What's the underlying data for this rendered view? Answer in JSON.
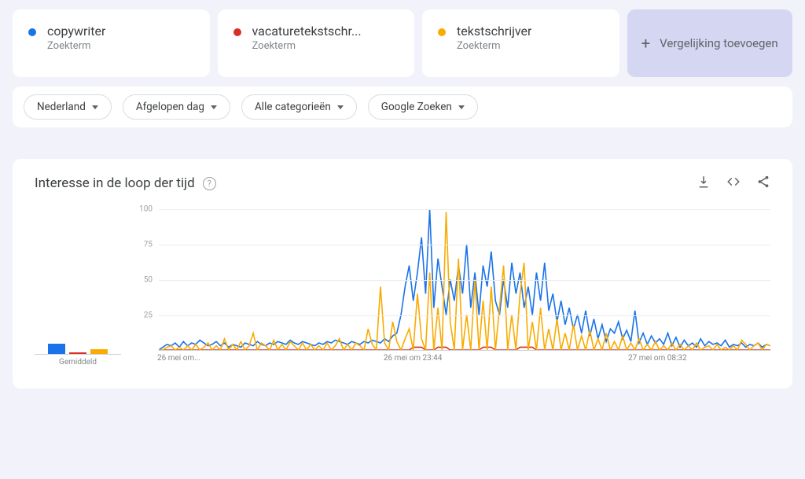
{
  "colors": {
    "blue": "#1a73e8",
    "red": "#d93025",
    "yellow": "#f9ab00",
    "page_bg": "#f1f2fa",
    "card_bg": "#ffffff",
    "add_card_bg": "#d5d7f2",
    "grid": "#ececec",
    "axis": "#cfd2d6",
    "text_main": "#3c4043",
    "text_muted": "#80868b",
    "pill_border": "#dadce0"
  },
  "terms": [
    {
      "title": "copywriter",
      "sub": "Zoekterm",
      "color": "#1a73e8"
    },
    {
      "title": "vacaturetekstschr...",
      "sub": "Zoekterm",
      "color": "#d93025"
    },
    {
      "title": "tekstschrijver",
      "sub": "Zoekterm",
      "color": "#f9ab00"
    }
  ],
  "add_compare_label": "Vergelijking toevoegen",
  "filters": [
    {
      "label": "Nederland"
    },
    {
      "label": "Afgelopen dag"
    },
    {
      "label": "Alle categorieën"
    },
    {
      "label": "Google Zoeken"
    }
  ],
  "chart": {
    "title": "Interesse in de loop der tijd",
    "type": "line",
    "ylim": [
      0,
      100
    ],
    "yticks": [
      25,
      50,
      75,
      100
    ],
    "line_width": 1.6,
    "n_points": 150,
    "x_ticks": [
      {
        "pos": 0.0,
        "label": "26 mei om..."
      },
      {
        "pos": 0.37,
        "label": "26 mei om 23:44"
      },
      {
        "pos": 0.77,
        "label": "27 mei om 08:32"
      }
    ],
    "averages_label": "Gemiddeld",
    "averages": [
      {
        "color": "#1a73e8",
        "value": 13
      },
      {
        "color": "#d93025",
        "value": 1
      },
      {
        "color": "#f9ab00",
        "value": 6
      }
    ],
    "series": [
      {
        "name": "copywriter",
        "color": "#1a73e8",
        "values": [
          0,
          2,
          4,
          3,
          5,
          2,
          6,
          3,
          5,
          4,
          7,
          5,
          3,
          4,
          6,
          3,
          5,
          2,
          4,
          3,
          2,
          5,
          4,
          3,
          6,
          4,
          3,
          5,
          4,
          6,
          5,
          4,
          7,
          5,
          4,
          6,
          5,
          4,
          3,
          5,
          4,
          6,
          5,
          7,
          6,
          5,
          4,
          6,
          5,
          4,
          6,
          5,
          7,
          6,
          5,
          8,
          6,
          10,
          12,
          25,
          45,
          60,
          35,
          55,
          80,
          40,
          100,
          30,
          65,
          45,
          25,
          50,
          35,
          60,
          40,
          75,
          30,
          55,
          25,
          60,
          45,
          70,
          35,
          25,
          50,
          30,
          62,
          40,
          55,
          30,
          45,
          25,
          55,
          35,
          62,
          28,
          40,
          20,
          35,
          18,
          30,
          15,
          25,
          12,
          28,
          10,
          22,
          8,
          18,
          6,
          15,
          12,
          20,
          8,
          14,
          6,
          28,
          5,
          12,
          4,
          10,
          5,
          8,
          4,
          12,
          3,
          9,
          2,
          7,
          3,
          5,
          2,
          8,
          3,
          6,
          4,
          5,
          3,
          7,
          2,
          4,
          3,
          5,
          2,
          4,
          3,
          5,
          2,
          4,
          3
        ]
      },
      {
        "name": "vacaturetekstschrijver",
        "color": "#d93025",
        "values": [
          0,
          0,
          0,
          0,
          0,
          0,
          0,
          0,
          0,
          0,
          0,
          0,
          0,
          0,
          0,
          0,
          0,
          0,
          0,
          0,
          0,
          0,
          0,
          0,
          0,
          0,
          0,
          0,
          0,
          0,
          0,
          0,
          0,
          0,
          0,
          0,
          0,
          0,
          0,
          0,
          0,
          0,
          0,
          0,
          0,
          0,
          0,
          0,
          0,
          0,
          0,
          0,
          0,
          0,
          0,
          0,
          0,
          0,
          0,
          0,
          0,
          0,
          2,
          2,
          2,
          0,
          0,
          0,
          2,
          2,
          2,
          0,
          0,
          0,
          0,
          0,
          0,
          0,
          0,
          2,
          2,
          2,
          0,
          0,
          0,
          0,
          0,
          0,
          2,
          2,
          2,
          2,
          0,
          0,
          0,
          0,
          0,
          0,
          0,
          0,
          0,
          0,
          0,
          0,
          0,
          0,
          0,
          0,
          0,
          0,
          0,
          0,
          0,
          0,
          0,
          0,
          0,
          0,
          0,
          0,
          0,
          0,
          0,
          0,
          0,
          0,
          0,
          0,
          0,
          0,
          0,
          0,
          0,
          0,
          0,
          0,
          0,
          0,
          0,
          0,
          0,
          0,
          0,
          0,
          0,
          0,
          0,
          0,
          0,
          0
        ]
      },
      {
        "name": "tekstschrijver",
        "color": "#f9ab00",
        "values": [
          0,
          0,
          2,
          3,
          0,
          2,
          0,
          3,
          0,
          4,
          0,
          2,
          5,
          0,
          3,
          0,
          8,
          0,
          4,
          0,
          6,
          0,
          3,
          12,
          0,
          5,
          3,
          0,
          7,
          0,
          4,
          0,
          6,
          3,
          0,
          5,
          0,
          4,
          0,
          3,
          0,
          5,
          0,
          3,
          8,
          0,
          4,
          0,
          5,
          3,
          0,
          15,
          4,
          0,
          45,
          5,
          0,
          20,
          6,
          0,
          8,
          15,
          0,
          40,
          8,
          0,
          55,
          0,
          30,
          0,
          98,
          20,
          0,
          65,
          0,
          25,
          0,
          50,
          0,
          35,
          0,
          45,
          0,
          30,
          60,
          0,
          25,
          0,
          40,
          62,
          0,
          20,
          0,
          30,
          0,
          15,
          0,
          22,
          0,
          12,
          0,
          18,
          0,
          10,
          0,
          14,
          0,
          8,
          0,
          12,
          0,
          6,
          0,
          10,
          0,
          5,
          0,
          8,
          0,
          4,
          0,
          6,
          0,
          3,
          0,
          5,
          0,
          4,
          0,
          3,
          0,
          5,
          0,
          2,
          3,
          0,
          4,
          0,
          2,
          0,
          3,
          0,
          7,
          4,
          0,
          3,
          5,
          0,
          4,
          3
        ]
      }
    ]
  }
}
